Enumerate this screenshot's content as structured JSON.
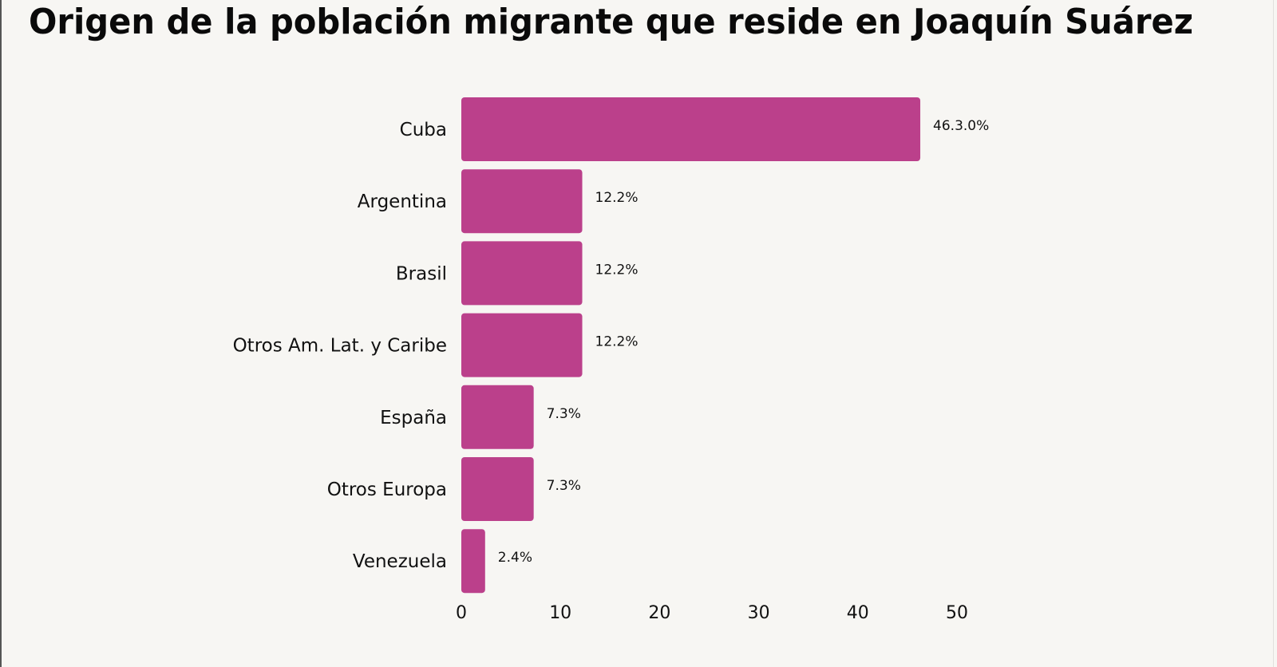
{
  "chart_data": {
    "type": "bar",
    "orientation": "horizontal",
    "title": "Origen de la población migrante que reside en Joaquín Suárez",
    "categories": [
      "Cuba",
      "Argentina",
      "Brasil",
      "Otros Am. Lat. y Caribe",
      "España",
      "Otros Europa",
      "Venezuela"
    ],
    "values": [
      46.3,
      12.2,
      12.2,
      12.2,
      7.3,
      7.3,
      2.4
    ],
    "data_labels": [
      "46.3.0%",
      "12.2%",
      "12.2%",
      "12.2%",
      "7.3%",
      "7.3%",
      "2.4%"
    ],
    "xlabel": "",
    "ylabel": "",
    "xlim": [
      0,
      50
    ],
    "x_ticks": [
      "0",
      "10",
      "20",
      "30",
      "40",
      "50"
    ],
    "grid": false,
    "legend": "none",
    "bar_color": "#bb408b",
    "background": "#f7f6f3"
  }
}
